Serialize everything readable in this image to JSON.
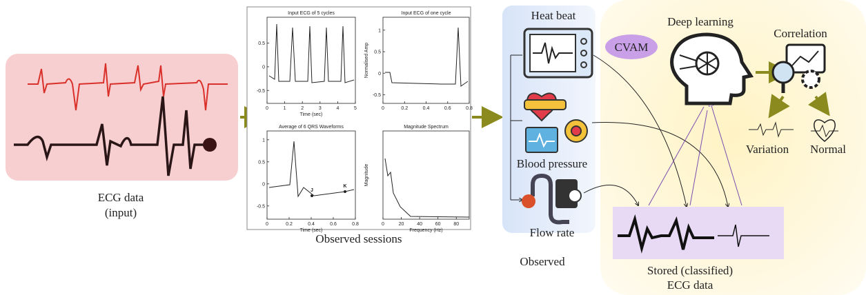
{
  "ecg_input": {
    "label": [
      "ECG data",
      "(input)"
    ]
  },
  "sessions": {
    "plots": [
      {
        "title": "Input ECG of 5 cycles",
        "xlabel": "Time (sec)",
        "xticks": [
          0,
          1,
          2,
          3,
          4,
          5
        ],
        "yticks": [
          0.5,
          0,
          -0.5
        ]
      },
      {
        "title": "Input ECG of one cycle",
        "ylabel": "Normalised Amp",
        "xticks": [
          0,
          0.2,
          0.4,
          0.6,
          0.8
        ],
        "yticks": [
          1,
          0.5,
          0,
          -0.5
        ]
      },
      {
        "title": "Average of 6 QRS Waveforms",
        "xlabel": "Time (sec)",
        "xticks": [
          0,
          0.2,
          0.4,
          0.6,
          0.8
        ],
        "yticks": [
          1,
          0.5,
          0,
          -0.5
        ],
        "annotations": [
          "J",
          "K"
        ]
      },
      {
        "title": "Magnitude Spectrum",
        "xlabel": "Frequency (Hz)",
        "ylabel": "Magnitude",
        "xticks": [
          0,
          20,
          40,
          60,
          80
        ]
      }
    ],
    "caption": "Observed sessions"
  },
  "observed": {
    "items": [
      "Heat beat",
      "Blood pressure",
      "Flow rate"
    ],
    "caption": "Observed"
  },
  "analysis": {
    "badge": "CVAM",
    "deep_learning": "Deep learning",
    "correlation": "Correlation",
    "outcomes": [
      "Variation",
      "Normal"
    ]
  },
  "stored": {
    "label": [
      "Stored (classified)",
      "ECG data"
    ]
  }
}
